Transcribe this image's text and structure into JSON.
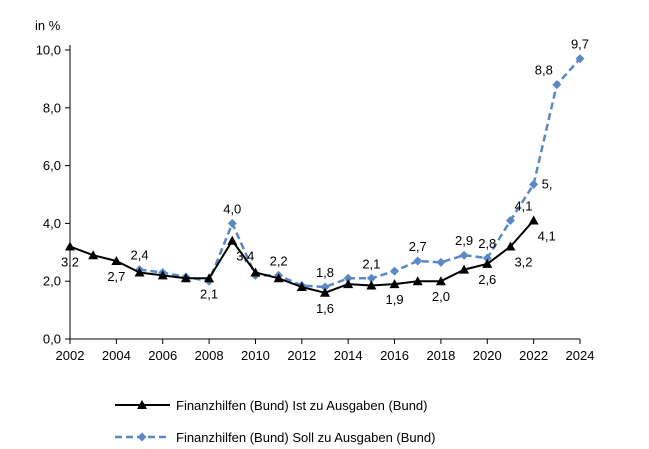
{
  "chart_data": {
    "type": "line",
    "ylabel": "in %",
    "ylim": [
      0,
      10
    ],
    "yticks": [
      "0,0",
      "2,0",
      "4,0",
      "6,0",
      "8,0",
      "10,0"
    ],
    "yticks_values": [
      0,
      2,
      4,
      6,
      8,
      10
    ],
    "xlim": [
      2002,
      2024
    ],
    "xticks": [
      "2002",
      "2004",
      "2006",
      "2008",
      "2010",
      "2012",
      "2014",
      "2016",
      "2018",
      "2020",
      "2022",
      "2024"
    ],
    "xticks_values": [
      2002,
      2004,
      2006,
      2008,
      2010,
      2012,
      2014,
      2016,
      2018,
      2020,
      2022,
      2024
    ],
    "grid": false,
    "legend_position": "bottom",
    "series": [
      {
        "name": "Finanzhilfen (Bund) Ist zu Ausgaben (Bund)",
        "color": "#000000",
        "marker": "triangle",
        "dash": "solid",
        "x": [
          2002,
          2003,
          2004,
          2005,
          2006,
          2007,
          2008,
          2009,
          2010,
          2011,
          2012,
          2013,
          2014,
          2015,
          2016,
          2017,
          2018,
          2019,
          2020,
          2021,
          2022
        ],
        "values": [
          3.2,
          2.9,
          2.7,
          2.3,
          2.2,
          2.1,
          2.1,
          3.4,
          2.3,
          2.1,
          1.8,
          1.6,
          1.9,
          1.85,
          1.9,
          2.0,
          2.0,
          2.4,
          2.6,
          3.2,
          4.1
        ]
      },
      {
        "name": "Finanzhilfen (Bund) Soll zu Ausgaben (Bund)",
        "color": "#5b87c5",
        "marker": "diamond",
        "dash": "dashed",
        "x": [
          2005,
          2006,
          2007,
          2008,
          2009,
          2010,
          2011,
          2012,
          2013,
          2014,
          2015,
          2016,
          2017,
          2018,
          2019,
          2020,
          2021,
          2022,
          2023,
          2024
        ],
        "values": [
          2.4,
          2.3,
          2.15,
          2.0,
          4.0,
          2.2,
          2.2,
          1.85,
          1.8,
          2.1,
          2.1,
          2.35,
          2.7,
          2.65,
          2.9,
          2.8,
          4.1,
          5.35,
          8.8,
          9.7
        ]
      }
    ],
    "data_labels": [
      {
        "series": 0,
        "x": 2002,
        "text": "3,2",
        "pos": "below"
      },
      {
        "series": 0,
        "x": 2004,
        "text": "2,7",
        "pos": "below"
      },
      {
        "series": 0,
        "x": 2008,
        "text": "2,1",
        "pos": "below"
      },
      {
        "series": 0,
        "x": 2009,
        "text": "3,4",
        "pos": "below-right"
      },
      {
        "series": 0,
        "x": 2013,
        "text": "1,6",
        "pos": "below"
      },
      {
        "series": 0,
        "x": 2016,
        "text": "1,9",
        "pos": "below"
      },
      {
        "series": 0,
        "x": 2018,
        "text": "2,0",
        "pos": "below"
      },
      {
        "series": 0,
        "x": 2020,
        "text": "2,6",
        "pos": "below"
      },
      {
        "series": 0,
        "x": 2021,
        "text": "3,2",
        "pos": "below-right"
      },
      {
        "series": 0,
        "x": 2022,
        "text": "4,1",
        "pos": "below-right"
      },
      {
        "series": 1,
        "x": 2005,
        "text": "2,4",
        "pos": "above"
      },
      {
        "series": 1,
        "x": 2009,
        "text": "4,0",
        "pos": "above"
      },
      {
        "series": 1,
        "x": 2011,
        "text": "2,2",
        "pos": "above"
      },
      {
        "series": 1,
        "x": 2013,
        "text": "1,8",
        "pos": "above"
      },
      {
        "series": 1,
        "x": 2015,
        "text": "2,1",
        "pos": "above"
      },
      {
        "series": 1,
        "x": 2017,
        "text": "2,7",
        "pos": "above"
      },
      {
        "series": 1,
        "x": 2019,
        "text": "2,9",
        "pos": "above"
      },
      {
        "series": 1,
        "x": 2020,
        "text": "2,8",
        "pos": "above"
      },
      {
        "series": 1,
        "x": 2021,
        "text": "4,1",
        "pos": "above-right"
      },
      {
        "series": 1,
        "x": 2022,
        "text": "5,",
        "pos": "right"
      },
      {
        "series": 1,
        "x": 2023,
        "text": "8,8",
        "pos": "above-left"
      },
      {
        "series": 1,
        "x": 2024,
        "text": "9,7",
        "pos": "above"
      }
    ]
  }
}
